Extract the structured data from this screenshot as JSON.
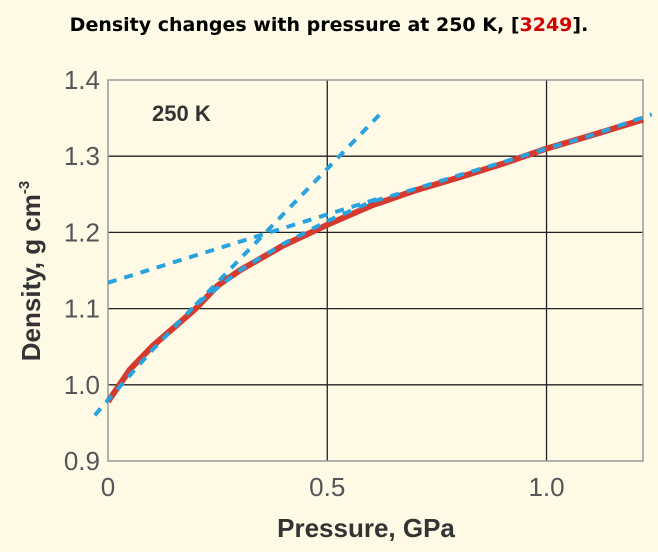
{
  "header": {
    "title_before": "Density changes with pressure at 250 K, [",
    "title_ref": "3249",
    "title_after": "]."
  },
  "chart_data": {
    "type": "line",
    "title": "Density changes with pressure at 250 K, [3249].",
    "annotation": "250 K",
    "xlabel": "Pressure, GPa",
    "ylabel": "Density, g cm",
    "ylabel_superscript": "-3",
    "xlim": [
      0,
      1.22
    ],
    "ylim": [
      0.9,
      1.4
    ],
    "x_ticks": [
      0,
      0.5,
      1.0
    ],
    "x_tick_labels": [
      "0",
      "0.5",
      "1.0"
    ],
    "y_ticks": [
      0.9,
      1.0,
      1.1,
      1.2,
      1.3,
      1.4
    ],
    "y_tick_labels": [
      "0.9",
      "1.0",
      "1.1",
      "1.2",
      "1.3",
      "1.4"
    ],
    "grid": true,
    "legend": "none",
    "colors": {
      "measured": "#d63a2f",
      "fit": "#29a3e0",
      "grid": "#222222",
      "frame": "#999999",
      "background": "#fefae6"
    },
    "series": [
      {
        "style": "solid-red",
        "x": [
          0.0,
          0.05,
          0.1,
          0.15,
          0.2,
          0.25,
          0.3,
          0.4,
          0.5,
          0.6,
          0.7,
          0.8,
          0.9,
          1.0,
          1.1,
          1.22
        ],
        "y": [
          0.978,
          1.02,
          1.05,
          1.075,
          1.1,
          1.13,
          1.15,
          1.183,
          1.21,
          1.235,
          1.255,
          1.272,
          1.29,
          1.31,
          1.327,
          1.348
        ]
      },
      {
        "style": "dashed-blue",
        "x": [
          -0.03,
          0.0,
          0.1,
          0.2,
          0.3,
          0.4,
          0.5,
          0.6,
          0.7,
          0.8,
          0.9,
          1.0,
          1.1,
          1.24
        ],
        "y": [
          0.96,
          0.98,
          1.045,
          1.105,
          1.15,
          1.185,
          1.215,
          1.24,
          1.257,
          1.275,
          1.292,
          1.31,
          1.327,
          1.355
        ]
      },
      {
        "style": "dashed-blue",
        "x": [
          0.0,
          0.62
        ],
        "y": [
          1.134,
          1.245
        ]
      },
      {
        "style": "dashed-blue",
        "x": [
          0.2,
          0.62
        ],
        "y": [
          1.105,
          1.355
        ]
      }
    ]
  }
}
